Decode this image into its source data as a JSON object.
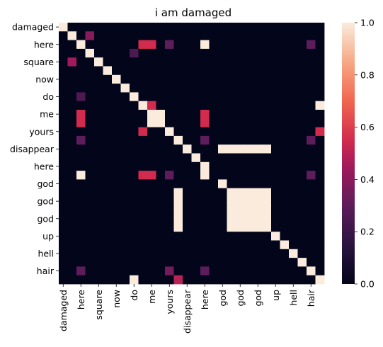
{
  "chart_data": {
    "type": "heatmap",
    "title": "i am damaged",
    "xlabel": "",
    "ylabel": "",
    "row_labels": [
      "damaged",
      "",
      "here",
      "",
      "square",
      "",
      "now",
      "",
      "do",
      "",
      "me",
      "",
      "yours",
      "",
      "disappear",
      "",
      "here",
      "",
      "god",
      "",
      "god",
      "",
      "god",
      "",
      "up",
      "",
      "hell",
      "",
      "hair",
      ""
    ],
    "col_labels": [
      "damaged",
      "",
      "here",
      "",
      "square",
      "",
      "now",
      "",
      "do",
      "",
      "me",
      "",
      "yours",
      "",
      "disappear",
      "",
      "here",
      "",
      "god",
      "",
      "god",
      "",
      "god",
      "",
      "up",
      "",
      "hell",
      "",
      "hair",
      ""
    ],
    "colorbar": {
      "ticks": [
        "0.0",
        "0.2",
        "0.4",
        "0.6",
        "0.8",
        "1.0"
      ],
      "range": [
        0,
        1
      ],
      "colormap": "rocket"
    },
    "values": [
      [
        1,
        0,
        0,
        0,
        0,
        0,
        0,
        0,
        0,
        0,
        0,
        0,
        0,
        0,
        0,
        0,
        0,
        0,
        0,
        0,
        0,
        0,
        0,
        0,
        0,
        0,
        0,
        0,
        0,
        0
      ],
      [
        0,
        1,
        0,
        0.4,
        0,
        0,
        0,
        0,
        0,
        0,
        0,
        0,
        0,
        0,
        0,
        0,
        0,
        0,
        0,
        0,
        0,
        0,
        0,
        0,
        0,
        0,
        0,
        0,
        0,
        0
      ],
      [
        0,
        0,
        1,
        0,
        0,
        0,
        0,
        0,
        0,
        0.55,
        0.55,
        0,
        0.3,
        0,
        0,
        0,
        1,
        0,
        0,
        0,
        0,
        0,
        0,
        0,
        0,
        0,
        0,
        0,
        0.3,
        0
      ],
      [
        0,
        0,
        0,
        1,
        0,
        0,
        0,
        0,
        0.25,
        0,
        0,
        0,
        0,
        0,
        0,
        0,
        0,
        0,
        0,
        0,
        0,
        0,
        0,
        0,
        0,
        0,
        0,
        0,
        0,
        0
      ],
      [
        0,
        0.45,
        0,
        0,
        1,
        0,
        0,
        0,
        0,
        0,
        0,
        0,
        0,
        0,
        0,
        0,
        0,
        0,
        0,
        0,
        0,
        0,
        0,
        0,
        0,
        0,
        0,
        0,
        0,
        0
      ],
      [
        0,
        0,
        0,
        0,
        0,
        1,
        0,
        0,
        0,
        0,
        0,
        0,
        0,
        0,
        0,
        0,
        0,
        0,
        0,
        0,
        0,
        0,
        0,
        0,
        0,
        0,
        0,
        0,
        0,
        0
      ],
      [
        0,
        0,
        0,
        0,
        0,
        0,
        1,
        0,
        0,
        0,
        0,
        0,
        0,
        0,
        0,
        0,
        0,
        0,
        0,
        0,
        0,
        0,
        0,
        0,
        0,
        0,
        0,
        0,
        0,
        0
      ],
      [
        0,
        0,
        0,
        0,
        0,
        0,
        0,
        1,
        0,
        0,
        0,
        0,
        0,
        0,
        0,
        0,
        0,
        0,
        0,
        0,
        0,
        0,
        0,
        0,
        0,
        0,
        0,
        0,
        0,
        0
      ],
      [
        0,
        0,
        0.25,
        0,
        0,
        0,
        0,
        0,
        1,
        0,
        0,
        0,
        0,
        0,
        0,
        0,
        0,
        0,
        0,
        0,
        0,
        0,
        0,
        0,
        0,
        0,
        0,
        0,
        0,
        0
      ],
      [
        0,
        0,
        0,
        0,
        0,
        0,
        0,
        0,
        0,
        1,
        0.55,
        0,
        0,
        0,
        0,
        0,
        0,
        0,
        0,
        0,
        0,
        0,
        0,
        0,
        0,
        0,
        0,
        0,
        0,
        1
      ],
      [
        0,
        0,
        0.55,
        0,
        0,
        0,
        0,
        0,
        0,
        0,
        1,
        1,
        0,
        0,
        0,
        0,
        0.55,
        0,
        0,
        0,
        0,
        0,
        0,
        0,
        0,
        0,
        0,
        0,
        0,
        0
      ],
      [
        0,
        0,
        0.55,
        0,
        0,
        0,
        0,
        0,
        0,
        0,
        1,
        1,
        0,
        0,
        0,
        0,
        0.55,
        0,
        0,
        0,
        0,
        0,
        0,
        0,
        0,
        0,
        0,
        0,
        0,
        0
      ],
      [
        0,
        0,
        0,
        0,
        0,
        0,
        0,
        0,
        0,
        0.55,
        0,
        0,
        1,
        0,
        0,
        0,
        0,
        0,
        0,
        0,
        0,
        0,
        0,
        0,
        0,
        0,
        0,
        0,
        0,
        0.55
      ],
      [
        0,
        0,
        0.3,
        0,
        0,
        0,
        0,
        0,
        0,
        0,
        0,
        0,
        0,
        1,
        0,
        0,
        0.3,
        0,
        0,
        0,
        0,
        0,
        0,
        0,
        0,
        0,
        0,
        0,
        0.3,
        0
      ],
      [
        0,
        0,
        0,
        0,
        0,
        0,
        0,
        0,
        0,
        0,
        0,
        0,
        0,
        0,
        1,
        0,
        0,
        0,
        1,
        1,
        1,
        1,
        1,
        1,
        0,
        0,
        0,
        0,
        0,
        0
      ],
      [
        0,
        0,
        0,
        0,
        0,
        0,
        0,
        0,
        0,
        0,
        0,
        0,
        0,
        0,
        0,
        1,
        0,
        0,
        0,
        0,
        0,
        0,
        0,
        0,
        0,
        0,
        0,
        0,
        0,
        0
      ],
      [
        0,
        0,
        0,
        0,
        0,
        0,
        0,
        0,
        0,
        0,
        0,
        0,
        0,
        0,
        0,
        0,
        1,
        0,
        0,
        0,
        0,
        0,
        0,
        0,
        0,
        0,
        0,
        0,
        0,
        0
      ],
      [
        0,
        0,
        1,
        0,
        0,
        0,
        0,
        0,
        0,
        0.55,
        0.55,
        0,
        0.3,
        0,
        0,
        0,
        1,
        0,
        0,
        0,
        0,
        0,
        0,
        0,
        0,
        0,
        0,
        0,
        0.3,
        0
      ],
      [
        0,
        0,
        0,
        0,
        0,
        0,
        0,
        0,
        0,
        0,
        0,
        0,
        0,
        0,
        0,
        0,
        0,
        0,
        1,
        0,
        0,
        0,
        0,
        0,
        0,
        0,
        0,
        0,
        0,
        0
      ],
      [
        0,
        0,
        0,
        0,
        0,
        0,
        0,
        0,
        0,
        0,
        0,
        0,
        0,
        1,
        0,
        0,
        0,
        0,
        0,
        1,
        1,
        1,
        1,
        1,
        0,
        0,
        0,
        0,
        0,
        0
      ],
      [
        0,
        0,
        0,
        0,
        0,
        0,
        0,
        0,
        0,
        0,
        0,
        0,
        0,
        1,
        0,
        0,
        0,
        0,
        0,
        1,
        1,
        1,
        1,
        1,
        0,
        0,
        0,
        0,
        0,
        0
      ],
      [
        0,
        0,
        0,
        0,
        0,
        0,
        0,
        0,
        0,
        0,
        0,
        0,
        0,
        1,
        0,
        0,
        0,
        0,
        0,
        1,
        1,
        1,
        1,
        1,
        0,
        0,
        0,
        0,
        0,
        0
      ],
      [
        0,
        0,
        0,
        0,
        0,
        0,
        0,
        0,
        0,
        0,
        0,
        0,
        0,
        1,
        0,
        0,
        0,
        0,
        0,
        1,
        1,
        1,
        1,
        1,
        0,
        0,
        0,
        0,
        0,
        0
      ],
      [
        0,
        0,
        0,
        0,
        0,
        0,
        0,
        0,
        0,
        0,
        0,
        0,
        0,
        1,
        0,
        0,
        0,
        0,
        0,
        1,
        1,
        1,
        1,
        1,
        0,
        0,
        0,
        0,
        0,
        0
      ],
      [
        0,
        0,
        0,
        0,
        0,
        0,
        0,
        0,
        0,
        0,
        0,
        0,
        0,
        0,
        0,
        0,
        0,
        0,
        0,
        0,
        0,
        0,
        0,
        0,
        1,
        0,
        0,
        0,
        0,
        0
      ],
      [
        0,
        0,
        0,
        0,
        0,
        0,
        0,
        0,
        0,
        0,
        0,
        0,
        0,
        0,
        0,
        0,
        0,
        0,
        0,
        0,
        0,
        0,
        0,
        0,
        0,
        1,
        0,
        0,
        0,
        0
      ],
      [
        0,
        0,
        0,
        0,
        0,
        0,
        0,
        0,
        0,
        0,
        0,
        0,
        0,
        0,
        0,
        0,
        0,
        0,
        0,
        0,
        0,
        0,
        0,
        0,
        0,
        0,
        1,
        0,
        0,
        0
      ],
      [
        0,
        0,
        0,
        0,
        0,
        0,
        0,
        0,
        0,
        0,
        0,
        0,
        0,
        0,
        0,
        0,
        0,
        0,
        0,
        0,
        0,
        0,
        0,
        0,
        0,
        0,
        0,
        1,
        0,
        0
      ],
      [
        0,
        0,
        0.3,
        0,
        0,
        0,
        0,
        0,
        0,
        0,
        0,
        0,
        0.35,
        0,
        0,
        0,
        0.3,
        0,
        0,
        0,
        0,
        0,
        0,
        0,
        0,
        0,
        0,
        0,
        1,
        0
      ],
      [
        0,
        0,
        0,
        0,
        0,
        0,
        0,
        0,
        1,
        0,
        0,
        0,
        0,
        0.5,
        0,
        0,
        0,
        0,
        0,
        0,
        0,
        0,
        0,
        0,
        0,
        0,
        0,
        0,
        0,
        1
      ]
    ]
  }
}
